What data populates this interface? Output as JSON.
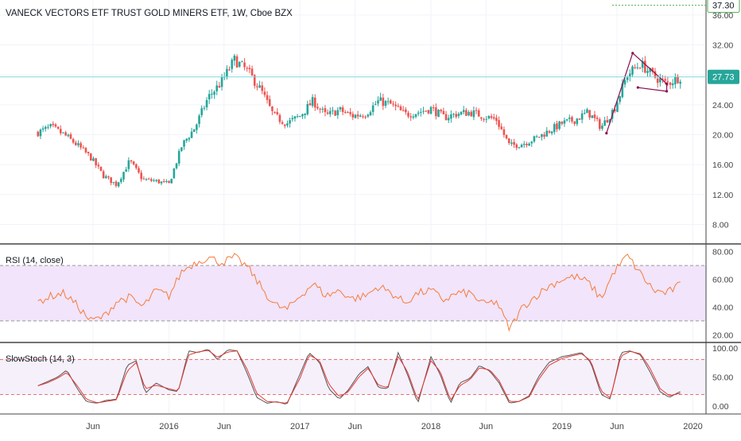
{
  "header": {
    "title": "VANECK VECTORS ETF TRUST GOLD MINERS ETF, 1W, Cboe BZX"
  },
  "colors": {
    "up": "#26a69a",
    "down": "#ef5350",
    "rsi_line": "#f57c3c",
    "rsi_band": "#f1e4fb",
    "stoch_k": "#555555",
    "stoch_d": "#e53935",
    "last_price_line": "#7fd6dd",
    "last_price_badge": "#26a69a",
    "high_marker": "#4caf50",
    "pattern": "#880e4f",
    "grid": "#f0f3fa",
    "axis_text": "#444444"
  },
  "chart_data": [
    {
      "type": "candlestick",
      "name": "price",
      "title": "VANECK VECTORS ETF TRUST GOLD MINERS ETF, 1W, Cboe BZX",
      "interval": "1W",
      "y_ticks": [
        "8.00",
        "12.00",
        "16.00",
        "20.00",
        "24.00",
        "28.00",
        "32.00",
        "36.00"
      ],
      "ylim": [
        5.5,
        38
      ],
      "last_price": {
        "value": 27.73,
        "label": "27.73"
      },
      "high_marker": {
        "value": 37.3,
        "label": "37.30"
      },
      "closes_sampled": [
        [
          2015.0,
          20.3
        ],
        [
          2015.1,
          21.0
        ],
        [
          2015.2,
          20.0
        ],
        [
          2015.3,
          18.6
        ],
        [
          2015.4,
          17.0
        ],
        [
          2015.5,
          14.5
        ],
        [
          2015.6,
          13.3
        ],
        [
          2015.7,
          16.5
        ],
        [
          2015.8,
          14.0
        ],
        [
          2015.9,
          13.8
        ],
        [
          2016.0,
          13.4
        ],
        [
          2016.1,
          18.6
        ],
        [
          2016.2,
          21.0
        ],
        [
          2016.3,
          25.0
        ],
        [
          2016.4,
          27.0
        ],
        [
          2016.5,
          30.0
        ],
        [
          2016.6,
          28.5
        ],
        [
          2016.7,
          26.0
        ],
        [
          2016.8,
          22.5
        ],
        [
          2016.9,
          21.5
        ],
        [
          2017.0,
          22.5
        ],
        [
          2017.1,
          24.5
        ],
        [
          2017.2,
          22.5
        ],
        [
          2017.3,
          23.3
        ],
        [
          2017.4,
          22.5
        ],
        [
          2017.5,
          22.8
        ],
        [
          2017.6,
          24.5
        ],
        [
          2017.7,
          24.0
        ],
        [
          2017.8,
          22.7
        ],
        [
          2017.9,
          23.0
        ],
        [
          2018.0,
          23.5
        ],
        [
          2018.1,
          22.3
        ],
        [
          2018.2,
          22.8
        ],
        [
          2018.3,
          23.0
        ],
        [
          2018.4,
          22.5
        ],
        [
          2018.5,
          22.0
        ],
        [
          2018.6,
          18.5
        ],
        [
          2018.7,
          18.8
        ],
        [
          2018.8,
          19.5
        ],
        [
          2018.9,
          20.5
        ],
        [
          2019.0,
          21.5
        ],
        [
          2019.1,
          22.0
        ],
        [
          2019.2,
          23.0
        ],
        [
          2019.3,
          21.0
        ],
        [
          2019.4,
          23.5
        ],
        [
          2019.5,
          28.0
        ],
        [
          2019.6,
          29.5
        ],
        [
          2019.7,
          27.8
        ],
        [
          2019.8,
          26.8
        ],
        [
          2019.9,
          27.73
        ]
      ],
      "pattern_points": [
        [
          2019.34,
          20.2
        ],
        [
          2019.54,
          30.9
        ],
        [
          2019.8,
          26.8
        ],
        [
          2019.8,
          25.8
        ],
        [
          2019.58,
          26.3
        ]
      ]
    },
    {
      "type": "line",
      "name": "rsi",
      "title": "RSI (14, close)",
      "y_ticks": [
        "20.00",
        "40.00",
        "60.00",
        "80.00"
      ],
      "ylim": [
        15,
        85
      ],
      "band": [
        30,
        70
      ],
      "values_sampled": [
        [
          2015.0,
          44
        ],
        [
          2015.1,
          48
        ],
        [
          2015.2,
          50
        ],
        [
          2015.3,
          41
        ],
        [
          2015.4,
          30
        ],
        [
          2015.5,
          33
        ],
        [
          2015.6,
          44
        ],
        [
          2015.7,
          47
        ],
        [
          2015.8,
          40
        ],
        [
          2015.9,
          52
        ],
        [
          2016.0,
          48
        ],
        [
          2016.1,
          66
        ],
        [
          2016.2,
          72
        ],
        [
          2016.3,
          76
        ],
        [
          2016.4,
          72
        ],
        [
          2016.5,
          76
        ],
        [
          2016.6,
          69
        ],
        [
          2016.7,
          55
        ],
        [
          2016.8,
          42
        ],
        [
          2016.9,
          38
        ],
        [
          2017.0,
          48
        ],
        [
          2017.1,
          57
        ],
        [
          2017.2,
          48
        ],
        [
          2017.3,
          52
        ],
        [
          2017.4,
          46
        ],
        [
          2017.5,
          48
        ],
        [
          2017.6,
          55
        ],
        [
          2017.7,
          50
        ],
        [
          2017.8,
          43
        ],
        [
          2017.9,
          50
        ],
        [
          2018.0,
          52
        ],
        [
          2018.1,
          45
        ],
        [
          2018.2,
          50
        ],
        [
          2018.3,
          50
        ],
        [
          2018.4,
          42
        ],
        [
          2018.5,
          44
        ],
        [
          2018.6,
          24
        ],
        [
          2018.7,
          40
        ],
        [
          2018.8,
          48
        ],
        [
          2018.9,
          55
        ],
        [
          2019.0,
          60
        ],
        [
          2019.1,
          62
        ],
        [
          2019.2,
          58
        ],
        [
          2019.3,
          46
        ],
        [
          2019.4,
          66
        ],
        [
          2019.5,
          77
        ],
        [
          2019.6,
          64
        ],
        [
          2019.7,
          52
        ],
        [
          2019.8,
          50
        ],
        [
          2019.9,
          56
        ]
      ]
    },
    {
      "type": "line",
      "name": "stoch",
      "title": "SlowStoch (14, 3)",
      "y_ticks": [
        "0.00",
        "50.00",
        "100.00"
      ],
      "ylim": [
        -12,
        108
      ],
      "bands": [
        20,
        80
      ],
      "series": [
        {
          "values_sampled": [
            [
              2015.0,
              35
            ],
            [
              2015.07,
              42
            ],
            [
              2015.15,
              50
            ],
            [
              2015.22,
              62
            ],
            [
              2015.3,
              30
            ],
            [
              2015.37,
              8
            ],
            [
              2015.45,
              5
            ],
            [
              2015.52,
              10
            ],
            [
              2015.6,
              12
            ],
            [
              2015.68,
              70
            ],
            [
              2015.75,
              78
            ],
            [
              2015.82,
              22
            ],
            [
              2015.9,
              40
            ],
            [
              2016.0,
              28
            ],
            [
              2016.07,
              25
            ],
            [
              2016.15,
              95
            ],
            [
              2016.22,
              92
            ],
            [
              2016.3,
              98
            ],
            [
              2016.37,
              80
            ],
            [
              2016.45,
              97
            ],
            [
              2016.52,
              95
            ],
            [
              2016.6,
              55
            ],
            [
              2016.67,
              15
            ],
            [
              2016.75,
              5
            ],
            [
              2016.82,
              8
            ],
            [
              2016.9,
              3
            ],
            [
              2017.0,
              55
            ],
            [
              2017.07,
              92
            ],
            [
              2017.15,
              75
            ],
            [
              2017.22,
              30
            ],
            [
              2017.3,
              12
            ],
            [
              2017.37,
              28
            ],
            [
              2017.45,
              55
            ],
            [
              2017.52,
              68
            ],
            [
              2017.6,
              32
            ],
            [
              2017.67,
              30
            ],
            [
              2017.75,
              92
            ],
            [
              2017.82,
              55
            ],
            [
              2017.9,
              5
            ],
            [
              2018.0,
              85
            ],
            [
              2018.07,
              55
            ],
            [
              2018.15,
              5
            ],
            [
              2018.22,
              40
            ],
            [
              2018.3,
              48
            ],
            [
              2018.37,
              70
            ],
            [
              2018.45,
              60
            ],
            [
              2018.52,
              40
            ],
            [
              2018.6,
              5
            ],
            [
              2018.67,
              8
            ],
            [
              2018.75,
              18
            ],
            [
              2018.82,
              50
            ],
            [
              2018.9,
              75
            ],
            [
              2019.0,
              85
            ],
            [
              2019.07,
              88
            ],
            [
              2019.15,
              92
            ],
            [
              2019.22,
              75
            ],
            [
              2019.3,
              20
            ],
            [
              2019.37,
              12
            ],
            [
              2019.45,
              92
            ],
            [
              2019.52,
              95
            ],
            [
              2019.6,
              88
            ],
            [
              2019.67,
              60
            ],
            [
              2019.75,
              25
            ],
            [
              2019.82,
              15
            ],
            [
              2019.9,
              25
            ]
          ]
        },
        {
          "values_sampled": [
            [
              2015.0,
              35
            ],
            [
              2015.07,
              40
            ],
            [
              2015.15,
              48
            ],
            [
              2015.22,
              58
            ],
            [
              2015.3,
              35
            ],
            [
              2015.37,
              12
            ],
            [
              2015.45,
              6
            ],
            [
              2015.52,
              8
            ],
            [
              2015.6,
              11
            ],
            [
              2015.68,
              60
            ],
            [
              2015.75,
              75
            ],
            [
              2015.82,
              30
            ],
            [
              2015.9,
              36
            ],
            [
              2016.0,
              30
            ],
            [
              2016.07,
              26
            ],
            [
              2016.15,
              88
            ],
            [
              2016.22,
              93
            ],
            [
              2016.3,
              96
            ],
            [
              2016.37,
              84
            ],
            [
              2016.45,
              93
            ],
            [
              2016.52,
              95
            ],
            [
              2016.6,
              62
            ],
            [
              2016.67,
              22
            ],
            [
              2016.75,
              8
            ],
            [
              2016.82,
              7
            ],
            [
              2016.9,
              5
            ],
            [
              2017.0,
              48
            ],
            [
              2017.07,
              88
            ],
            [
              2017.15,
              78
            ],
            [
              2017.22,
              38
            ],
            [
              2017.3,
              16
            ],
            [
              2017.37,
              25
            ],
            [
              2017.45,
              50
            ],
            [
              2017.52,
              65
            ],
            [
              2017.6,
              36
            ],
            [
              2017.67,
              32
            ],
            [
              2017.75,
              85
            ],
            [
              2017.82,
              60
            ],
            [
              2017.9,
              10
            ],
            [
              2018.0,
              78
            ],
            [
              2018.07,
              60
            ],
            [
              2018.15,
              10
            ],
            [
              2018.22,
              35
            ],
            [
              2018.3,
              46
            ],
            [
              2018.37,
              66
            ],
            [
              2018.45,
              62
            ],
            [
              2018.52,
              44
            ],
            [
              2018.6,
              8
            ],
            [
              2018.67,
              8
            ],
            [
              2018.75,
              16
            ],
            [
              2018.82,
              45
            ],
            [
              2018.9,
              70
            ],
            [
              2019.0,
              82
            ],
            [
              2019.07,
              86
            ],
            [
              2019.15,
              90
            ],
            [
              2019.22,
              78
            ],
            [
              2019.3,
              26
            ],
            [
              2019.37,
              14
            ],
            [
              2019.45,
              86
            ],
            [
              2019.52,
              94
            ],
            [
              2019.6,
              90
            ],
            [
              2019.67,
              66
            ],
            [
              2019.75,
              30
            ],
            [
              2019.82,
              18
            ],
            [
              2019.9,
              22
            ]
          ]
        }
      ]
    }
  ],
  "x_axis": {
    "range": [
      2014.71,
      2020.1
    ],
    "labels": [
      {
        "x": 2015.42,
        "text": "Jun"
      },
      {
        "x": 2016.0,
        "text": "2016"
      },
      {
        "x": 2016.42,
        "text": "Jun"
      },
      {
        "x": 2017.0,
        "text": "2017"
      },
      {
        "x": 2017.42,
        "text": "Jun"
      },
      {
        "x": 2018.0,
        "text": "2018"
      },
      {
        "x": 2018.42,
        "text": "Jun"
      },
      {
        "x": 2019.0,
        "text": "2019"
      },
      {
        "x": 2019.42,
        "text": "Jun"
      },
      {
        "x": 2020.0,
        "text": "2020"
      }
    ]
  }
}
